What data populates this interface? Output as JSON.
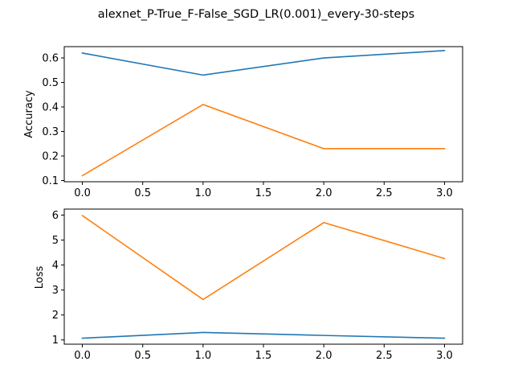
{
  "figure": {
    "title": "alexnet_P-True_F-False_SGD_LR(0.001)_every-30-steps"
  },
  "chart_data": [
    {
      "type": "line",
      "title": "",
      "xlabel": "",
      "ylabel": "Accuracy",
      "x": [
        0,
        1,
        2,
        3
      ],
      "xlim": [
        -0.15,
        3.15
      ],
      "ylim": [
        0.095,
        0.646
      ],
      "xticks": [
        0.0,
        0.5,
        1.0,
        1.5,
        2.0,
        2.5,
        3.0
      ],
      "xtick_labels": [
        "0.0",
        "0.5",
        "1.0",
        "1.5",
        "2.0",
        "2.5",
        "3.0"
      ],
      "yticks": [
        0.1,
        0.2,
        0.3,
        0.4,
        0.5,
        0.6
      ],
      "ytick_labels": [
        "0.1",
        "0.2",
        "0.3",
        "0.4",
        "0.5",
        "0.6"
      ],
      "grid": false,
      "series": [
        {
          "values": [
            0.62,
            0.53,
            0.6,
            0.63
          ],
          "color": "#1f77b4"
        },
        {
          "values": [
            0.12,
            0.41,
            0.23,
            0.23
          ],
          "color": "#ff7f0e"
        }
      ]
    },
    {
      "type": "line",
      "title": "",
      "xlabel": "",
      "ylabel": "Loss",
      "x": [
        0,
        1,
        2,
        3
      ],
      "xlim": [
        -0.15,
        3.15
      ],
      "ylim": [
        0.83,
        6.24
      ],
      "xticks": [
        0.0,
        0.5,
        1.0,
        1.5,
        2.0,
        2.5,
        3.0
      ],
      "xtick_labels": [
        "0.0",
        "0.5",
        "1.0",
        "1.5",
        "2.0",
        "2.5",
        "3.0"
      ],
      "yticks": [
        1,
        2,
        3,
        4,
        5,
        6
      ],
      "ytick_labels": [
        "1",
        "2",
        "3",
        "4",
        "5",
        "6"
      ],
      "grid": false,
      "series": [
        {
          "values": [
            1.07,
            1.3,
            1.18,
            1.07
          ],
          "color": "#1f77b4"
        },
        {
          "values": [
            5.98,
            2.62,
            5.7,
            4.26
          ],
          "color": "#ff7f0e"
        }
      ]
    }
  ]
}
